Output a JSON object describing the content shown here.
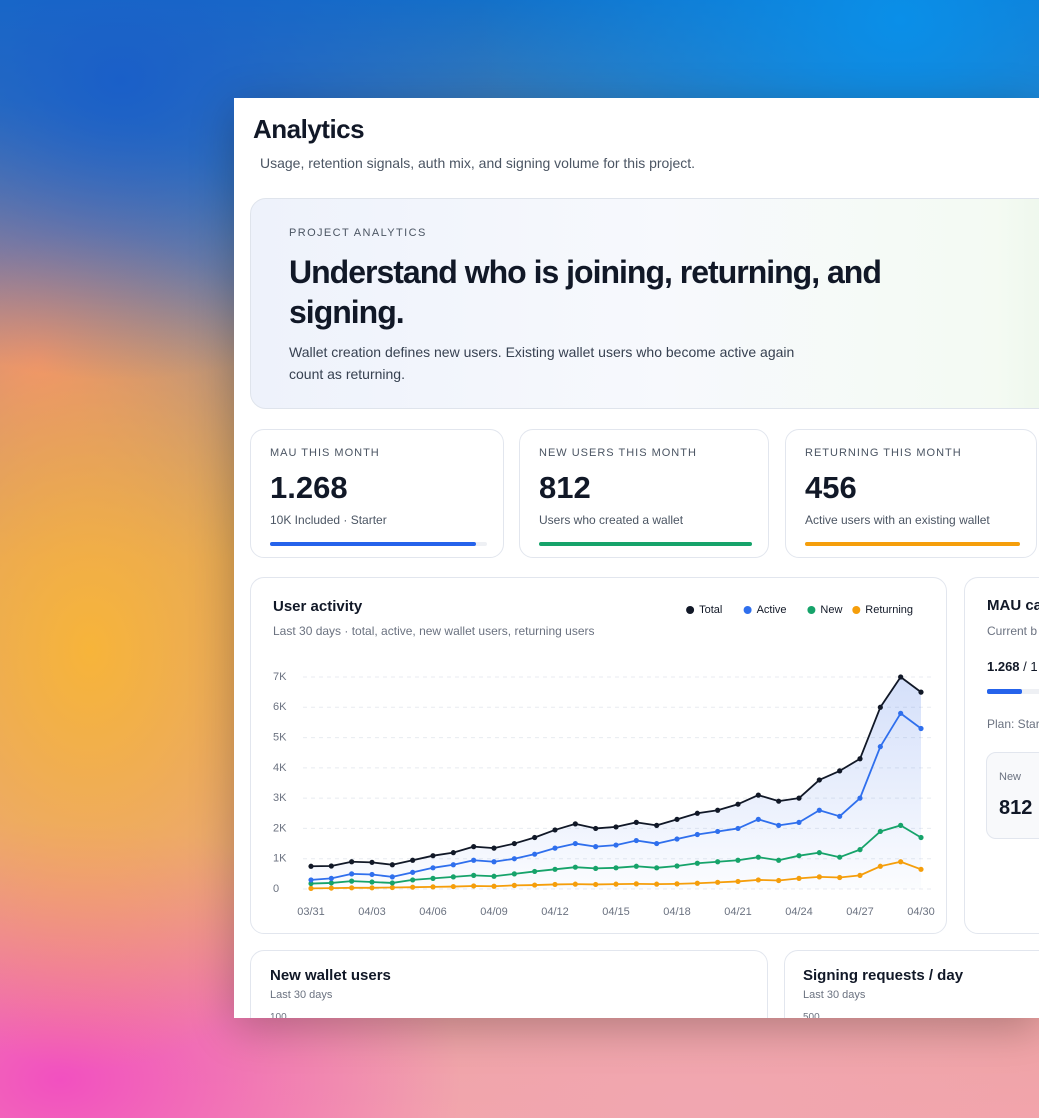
{
  "header": {
    "title": "Analytics",
    "subtitle": "Usage, retention signals, auth mix, and signing volume for this project."
  },
  "hero": {
    "eyebrow": "PROJECT ANALYTICS",
    "headline": "Understand who is joining, returning, and signing.",
    "body": "Wallet creation defines new users. Existing wallet users who become active again count as returning."
  },
  "stats": [
    {
      "label": "MAU THIS MONTH",
      "value": "1.268",
      "note": "10K Included · Starter",
      "progress": 95,
      "color": "#2563eb"
    },
    {
      "label": "NEW USERS THIS MONTH",
      "value": "812",
      "note": "Users who created a wallet",
      "progress": 100,
      "color": "#16a36a"
    },
    {
      "label": "RETURNING THIS MONTH",
      "value": "456",
      "note": "Active users with an existing wallet",
      "progress": 100,
      "color": "#f59e0b"
    }
  ],
  "chart_data": {
    "type": "line",
    "title": "User activity",
    "subtitle": "Last 30 days · total, active, new wallet users, returning users",
    "categories": [
      "03/31",
      null,
      null,
      "04/03",
      null,
      null,
      "04/06",
      null,
      null,
      "04/09",
      null,
      null,
      "04/12",
      null,
      null,
      "04/15",
      null,
      null,
      "04/18",
      null,
      null,
      "04/21",
      null,
      null,
      "04/24",
      null,
      null,
      "04/27",
      null,
      null,
      "04/30"
    ],
    "series": [
      {
        "name": "Total",
        "color": "#111827",
        "values": [
          750,
          760,
          900,
          880,
          800,
          950,
          1100,
          1200,
          1400,
          1350,
          1500,
          1700,
          1950,
          2150,
          2000,
          2050,
          2200,
          2100,
          2300,
          2500,
          2600,
          2800,
          3100,
          2900,
          3000,
          3600,
          3900,
          4300,
          6000,
          7000,
          6500
        ]
      },
      {
        "name": "Active",
        "color": "#2f6fed",
        "values": [
          300,
          350,
          500,
          480,
          400,
          550,
          700,
          800,
          950,
          900,
          1000,
          1150,
          1350,
          1500,
          1400,
          1450,
          1600,
          1500,
          1650,
          1800,
          1900,
          2000,
          2300,
          2100,
          2200,
          2600,
          2400,
          3000,
          4700,
          5800,
          5300
        ]
      },
      {
        "name": "New",
        "color": "#16a36a",
        "values": [
          180,
          200,
          260,
          230,
          200,
          300,
          350,
          400,
          450,
          420,
          500,
          580,
          650,
          720,
          680,
          700,
          750,
          700,
          760,
          850,
          900,
          950,
          1050,
          950,
          1100,
          1200,
          1050,
          1300,
          1900,
          2100,
          1700
        ]
      },
      {
        "name": "Returning",
        "color": "#f59e0b",
        "values": [
          20,
          30,
          40,
          40,
          50,
          60,
          70,
          80,
          100,
          90,
          120,
          130,
          150,
          160,
          150,
          160,
          170,
          160,
          170,
          190,
          220,
          250,
          300,
          280,
          350,
          400,
          380,
          450,
          750,
          900,
          650
        ]
      }
    ],
    "ylim": [
      0,
      7000
    ],
    "yticks": [
      0,
      {
        "value": 1000,
        "label": "1K"
      },
      {
        "value": 2000,
        "label": "2K"
      },
      {
        "value": 3000,
        "label": "3K"
      },
      {
        "value": 4000,
        "label": "4K"
      },
      {
        "value": 5000,
        "label": "5K"
      },
      {
        "value": 6000,
        "label": "6K"
      },
      {
        "value": 7000,
        "label": "7K"
      }
    ],
    "grid": true,
    "legend": "top-right"
  },
  "cap_card": {
    "title": "MAU ca",
    "subtitle": "Current b",
    "usage": "1.268",
    "usage_rest": "/ 1",
    "progress": 13,
    "plan": "Plan: Star",
    "tile_label": "New",
    "tile_value": "812"
  },
  "bottom": [
    {
      "title": "New wallet users",
      "subtitle": "Last 30 days",
      "tick": "100"
    },
    {
      "title": "Signing requests / day",
      "subtitle": "Last 30 days",
      "tick": "500"
    }
  ]
}
